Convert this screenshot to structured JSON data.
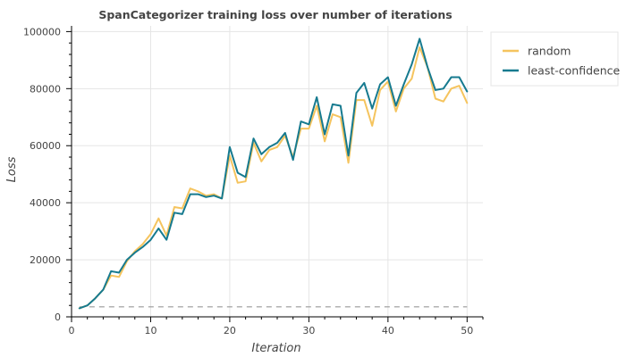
{
  "chart_data": {
    "type": "line",
    "title": "SpanCategorizer training loss over number of iterations",
    "xlabel": "Iteration",
    "ylabel": "Loss",
    "xlim": [
      0,
      52
    ],
    "ylim": [
      0,
      102000
    ],
    "x_ticks": [
      0,
      10,
      20,
      30,
      40,
      50
    ],
    "x_tick_labels": [
      "0",
      "10",
      "20",
      "30",
      "40",
      "50"
    ],
    "y_ticks": [
      0,
      20000,
      40000,
      60000,
      80000,
      100000
    ],
    "y_tick_labels": [
      "0",
      "20000",
      "40000",
      "60000",
      "80000",
      "100000"
    ],
    "grid": true,
    "legend_position": "top-right-outside",
    "x": [
      1,
      2,
      3,
      4,
      5,
      6,
      7,
      8,
      9,
      10,
      11,
      12,
      13,
      14,
      15,
      16,
      17,
      18,
      19,
      20,
      21,
      22,
      23,
      24,
      25,
      26,
      27,
      28,
      29,
      30,
      31,
      32,
      33,
      34,
      35,
      36,
      37,
      38,
      39,
      40,
      41,
      42,
      43,
      44,
      45,
      46,
      47,
      48,
      49,
      50
    ],
    "series": [
      {
        "name": "random",
        "color": "#f5c45e",
        "values": [
          3000,
          4000,
          6500,
          9500,
          14500,
          14000,
          19500,
          23000,
          25500,
          29000,
          34500,
          28500,
          38500,
          38000,
          45000,
          44000,
          42500,
          43000,
          41500,
          56500,
          47000,
          47500,
          61000,
          54500,
          58500,
          59500,
          63500,
          56000,
          66000,
          66000,
          74000,
          61500,
          71000,
          70000,
          54000,
          76000,
          76000,
          67000,
          79500,
          82500,
          72000,
          80000,
          83500,
          94500,
          87500,
          76500,
          75500,
          80000,
          81000,
          75000
        ]
      },
      {
        "name": "least-confidence",
        "color": "#167a8f",
        "values": [
          3000,
          4000,
          6500,
          9500,
          16000,
          15500,
          20000,
          22500,
          24500,
          27000,
          31000,
          27000,
          36500,
          36000,
          43000,
          43000,
          42000,
          42500,
          41500,
          59500,
          50500,
          49000,
          62500,
          57000,
          59500,
          61000,
          64500,
          55000,
          68500,
          67500,
          77000,
          64000,
          74500,
          74000,
          56500,
          78500,
          82000,
          73000,
          81500,
          84000,
          74000,
          81500,
          88500,
          97500,
          87500,
          79500,
          80000,
          84000,
          84000,
          79000
        ]
      }
    ],
    "baseline": {
      "y": 3500,
      "color": "#999999",
      "style": "dashed"
    }
  }
}
